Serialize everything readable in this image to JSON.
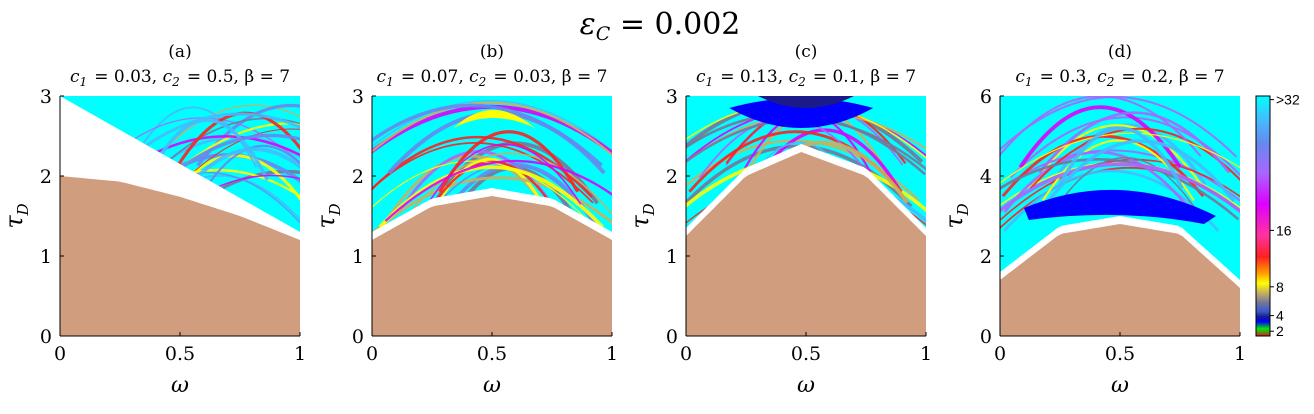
{
  "figure": {
    "suptitle": "ε_C = 0.002",
    "colorbar": {
      "tick_labels": [
        ">32",
        "16",
        "8",
        "4",
        "2"
      ],
      "tick_values": [
        33,
        16,
        8,
        4,
        2
      ],
      "range": [
        1,
        33
      ],
      "colors": [
        "#cc2020",
        "#00ee00",
        "#0000ff",
        "#1a1a8a",
        "#3355cc",
        "#777799",
        "#c8b060",
        "#ffff00",
        "#ffa000",
        "#ff2020",
        "#ff33a0",
        "#dd00ff",
        "#aa66ff",
        "#6688ee",
        "#44bbff",
        "#00ffff"
      ]
    }
  },
  "chart_data": [
    {
      "type": "heatmap",
      "panel": "(a)",
      "title": "c_1 = 0.03, c_2 = 0.5, β = 7",
      "xlabel": "ω",
      "ylabel": "τ_D",
      "xlim": [
        0,
        1
      ],
      "ylim": [
        0,
        3
      ],
      "xticks": [
        0,
        0.5,
        1
      ],
      "yticks": [
        0,
        1,
        2,
        3
      ],
      "xtick_labels": [
        "0",
        "0.5",
        "1"
      ],
      "ytick_labels": [
        "0",
        "1",
        "2",
        "3"
      ],
      "stable_region_color": "#d09e7f",
      "stable_boundary": [
        [
          0,
          2.0
        ],
        [
          0.25,
          1.93
        ],
        [
          0.5,
          1.74
        ],
        [
          0.75,
          1.5
        ],
        [
          1.0,
          1.2
        ]
      ],
      "white_gap_upper": [
        [
          0,
          3.0
        ],
        [
          0.5,
          2.15
        ],
        [
          1.0,
          1.3
        ]
      ]
    },
    {
      "type": "heatmap",
      "panel": "(b)",
      "title": "c_1 = 0.07, c_2 = 0.03, β = 7",
      "xlabel": "ω",
      "ylabel": "τ_D",
      "xlim": [
        0,
        1
      ],
      "ylim": [
        0,
        3
      ],
      "xticks": [
        0,
        0.5,
        1
      ],
      "yticks": [
        0,
        1,
        2,
        3
      ],
      "xtick_labels": [
        "0",
        "0.5",
        "1"
      ],
      "ytick_labels": [
        "0",
        "1",
        "2",
        "3"
      ],
      "stable_region_color": "#d09e7f",
      "stable_boundary": [
        [
          0,
          1.2
        ],
        [
          0.25,
          1.62
        ],
        [
          0.5,
          1.75
        ],
        [
          0.75,
          1.62
        ],
        [
          1.0,
          1.2
        ]
      ]
    },
    {
      "type": "heatmap",
      "panel": "(c)",
      "title": "c_1 = 0.13, c_2 = 0.1, β = 7",
      "xlabel": "ω",
      "ylabel": "τ_D",
      "xlim": [
        0,
        1
      ],
      "ylim": [
        0,
        3
      ],
      "xticks": [
        0,
        0.5,
        1
      ],
      "yticks": [
        0,
        1,
        2,
        3
      ],
      "xtick_labels": [
        "0",
        "0.5",
        "1"
      ],
      "ytick_labels": [
        "0",
        "1",
        "2",
        "3"
      ],
      "stable_region_color": "#d09e7f",
      "stable_boundary": [
        [
          0,
          1.25
        ],
        [
          0.25,
          2.0
        ],
        [
          0.48,
          2.3
        ],
        [
          0.75,
          2.0
        ],
        [
          1.0,
          1.25
        ]
      ]
    },
    {
      "type": "heatmap",
      "panel": "(d)",
      "title": "c_1 = 0.3, c_2 = 0.2, β = 7",
      "xlabel": "ω",
      "ylabel": "τ_D",
      "xlim": [
        0,
        1
      ],
      "ylim": [
        0,
        6
      ],
      "xticks": [
        0,
        0.5,
        1
      ],
      "yticks": [
        0,
        2,
        4,
        6
      ],
      "xtick_labels": [
        "0",
        "0.5",
        "1"
      ],
      "ytick_labels": [
        "0",
        "2",
        "4",
        "6"
      ],
      "stable_region_color": "#d09e7f",
      "stable_boundary": [
        [
          0,
          1.4
        ],
        [
          0.25,
          2.55
        ],
        [
          0.5,
          2.8
        ],
        [
          0.75,
          2.55
        ],
        [
          1.0,
          1.2
        ]
      ]
    }
  ]
}
